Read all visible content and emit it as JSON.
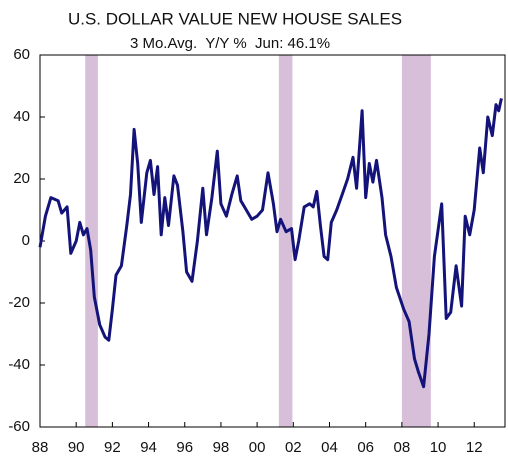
{
  "chart_data": {
    "type": "line",
    "title": "U.S. DOLLAR VALUE NEW HOUSE SALES",
    "subtitle": "3 Mo.Avg.  Y/Y %  Jun: 46.1%",
    "x": [
      1988.0,
      1988.3,
      1988.6,
      1989.0,
      1989.2,
      1989.5,
      1989.7,
      1990.0,
      1990.2,
      1990.4,
      1990.6,
      1990.8,
      1991.0,
      1991.3,
      1991.6,
      1991.8,
      1992.0,
      1992.2,
      1992.5,
      1992.8,
      1993.0,
      1993.2,
      1993.4,
      1993.6,
      1993.9,
      1994.1,
      1994.3,
      1994.5,
      1994.7,
      1994.9,
      1995.1,
      1995.4,
      1995.6,
      1995.9,
      1996.1,
      1996.4,
      1996.7,
      1997.0,
      1997.2,
      1997.5,
      1997.8,
      1998.0,
      1998.3,
      1998.6,
      1998.9,
      1999.1,
      1999.4,
      1999.7,
      2000.0,
      2000.3,
      2000.6,
      2000.9,
      2001.1,
      2001.3,
      2001.6,
      2001.9,
      2002.1,
      2002.3,
      2002.6,
      2002.9,
      2003.1,
      2003.3,
      2003.5,
      2003.7,
      2003.9,
      2004.1,
      2004.4,
      2004.7,
      2005.0,
      2005.3,
      2005.5,
      2005.8,
      2006.0,
      2006.2,
      2006.4,
      2006.6,
      2006.9,
      2007.1,
      2007.4,
      2007.7,
      2008.1,
      2008.4,
      2008.7,
      2008.9,
      2009.2,
      2009.5,
      2009.8,
      2010.2,
      2010.45,
      2010.7,
      2011.0,
      2011.3,
      2011.5,
      2011.75,
      2012.0,
      2012.3,
      2012.5,
      2012.75,
      2013.0,
      2013.2,
      2013.35,
      2013.5
    ],
    "series": [
      {
        "name": "New house sales Y/Y",
        "color": "#13137a",
        "values": [
          -2,
          8,
          14,
          13,
          9,
          11,
          -4,
          0,
          6,
          2,
          4,
          -3,
          -18,
          -27,
          -31,
          -32,
          -22,
          -11,
          -8,
          5,
          15,
          36,
          25,
          6,
          22,
          26,
          15,
          24,
          2,
          14,
          5,
          21,
          18,
          3,
          -10,
          -13,
          0,
          17,
          2,
          14,
          29,
          12,
          8,
          15,
          21,
          13,
          10,
          7,
          8,
          10,
          22,
          12,
          3,
          7,
          3,
          4,
          -6,
          0,
          11,
          12,
          11,
          16,
          5,
          -5,
          -6,
          6,
          10,
          15,
          20,
          27,
          17,
          42,
          14,
          25,
          19,
          26,
          14,
          2,
          -5,
          -15,
          -22,
          -26,
          -38,
          -42,
          -47,
          -30,
          -5,
          12,
          -25,
          -23,
          -8,
          -21,
          8,
          2,
          10,
          30,
          22,
          40,
          34,
          44,
          42,
          46
        ]
      }
    ],
    "shading": [
      {
        "start": 1990.5,
        "end": 1991.2
      },
      {
        "start": 2001.2,
        "end": 2001.95
      },
      {
        "start": 2008.0,
        "end": 2009.6
      }
    ],
    "shading_color": "#d7bfd9",
    "xlim": [
      1988,
      2013.7
    ],
    "xticks": [
      {
        "value": 1988,
        "label": "88"
      },
      {
        "value": 1990,
        "label": "90"
      },
      {
        "value": 1992,
        "label": "92"
      },
      {
        "value": 1994,
        "label": "94"
      },
      {
        "value": 1996,
        "label": "96"
      },
      {
        "value": 1998,
        "label": "98"
      },
      {
        "value": 2000,
        "label": "00"
      },
      {
        "value": 2002,
        "label": "02"
      },
      {
        "value": 2004,
        "label": "04"
      },
      {
        "value": 2006,
        "label": "06"
      },
      {
        "value": 2008,
        "label": "08"
      },
      {
        "value": 2010,
        "label": "10"
      },
      {
        "value": 2012,
        "label": "12"
      }
    ],
    "ylim": [
      -60,
      60
    ],
    "yticks": [
      -60,
      -40,
      -20,
      0,
      20,
      40,
      60
    ]
  }
}
